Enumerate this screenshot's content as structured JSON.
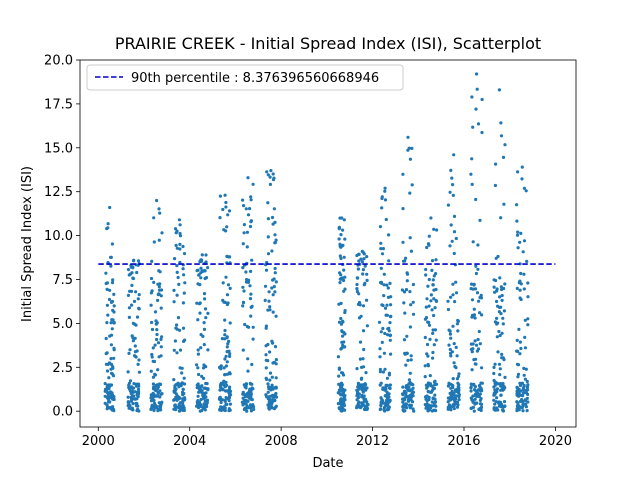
{
  "chart_data": {
    "type": "scatter",
    "title": "PRAIRIE CREEK - Initial Spread Index (ISI), Scatterplot",
    "xlabel": "Date",
    "ylabel": "Initial Spread Index (ISI)",
    "xlim": [
      1999.2,
      2020.9
    ],
    "ylim": [
      -0.9,
      20.0
    ],
    "xticks": [
      2000,
      2004,
      2008,
      2012,
      2016,
      2020
    ],
    "yticks": [
      0.0,
      2.5,
      5.0,
      7.5,
      10.0,
      12.5,
      15.0,
      17.5,
      20.0
    ],
    "grid": false,
    "legend_position": "upper-left",
    "colors": {
      "points": "#1f77b4",
      "percentile_line": "#0000cc"
    },
    "reference_line": {
      "label": "90th percentile : 8.376396560668946",
      "value": 8.376396560668946,
      "x_range": [
        2000.0,
        2020.0
      ],
      "style": "dashed"
    },
    "series": [
      {
        "seasons": [
          {
            "start": 2000.3,
            "end": 2000.7,
            "max": 11.6
          },
          {
            "start": 2001.3,
            "end": 2001.8,
            "max": 8.6
          },
          {
            "start": 2002.3,
            "end": 2002.8,
            "max": 12.0
          },
          {
            "start": 2003.3,
            "end": 2003.8,
            "max": 10.9
          },
          {
            "start": 2004.3,
            "end": 2004.8,
            "max": 8.9
          },
          {
            "start": 2005.3,
            "end": 2005.8,
            "max": 12.3
          },
          {
            "start": 2006.3,
            "end": 2006.8,
            "max": 13.3
          },
          {
            "start": 2007.3,
            "end": 2007.8,
            "max": 13.7
          },
          {
            "start": 2010.5,
            "end": 2010.8,
            "max": 11.0
          },
          {
            "start": 2011.3,
            "end": 2011.8,
            "max": 9.1
          },
          {
            "start": 2012.3,
            "end": 2012.8,
            "max": 12.7
          },
          {
            "start": 2013.3,
            "end": 2013.8,
            "max": 15.6
          },
          {
            "start": 2014.3,
            "end": 2014.8,
            "max": 11.0
          },
          {
            "start": 2015.3,
            "end": 2015.8,
            "max": 14.6
          },
          {
            "start": 2016.3,
            "end": 2016.8,
            "max": 19.2
          },
          {
            "start": 2017.3,
            "end": 2017.8,
            "max": 18.3
          },
          {
            "start": 2018.3,
            "end": 2018.8,
            "max": 13.9
          }
        ]
      }
    ]
  }
}
